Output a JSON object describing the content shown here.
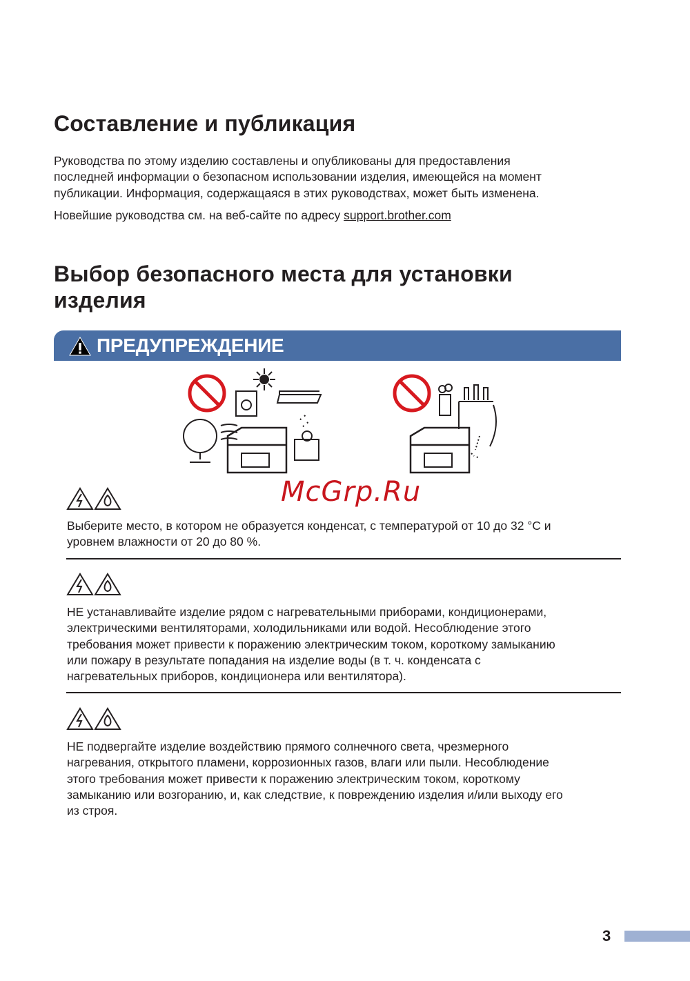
{
  "section1": {
    "title": "Составление и публикация",
    "para1_lines": [
      "Руководства по этому изделию составлены и опубликованы для предоставления",
      "последней информации о безопасном использовании изделия, имеющейся на момент",
      "публикации. Информация, содержащаяся в этих руководствах, может быть изменена."
    ],
    "para2_prefix": "Новейшие руководства см. на веб-сайте по адресу ",
    "para2_link": "support.brother.com"
  },
  "section2": {
    "title_lines": [
      "Выбор безопасного места для установки",
      "изделия"
    ]
  },
  "warning": {
    "label": "ПРЕДУПРЕЖДЕНИЕ",
    "color": "#4a6fa5"
  },
  "watermark": "McGrp.Ru",
  "items": [
    {
      "icons": [
        "electric-shock-warning-icon",
        "fire-warning-icon"
      ],
      "lines": [
        "Выберите место, в котором не образуется конденсат, с температурой от 10 до 32 °C и",
        "уровнем влажности от 20 до 80 %."
      ]
    },
    {
      "icons": [
        "electric-shock-warning-icon",
        "fire-warning-icon"
      ],
      "lines": [
        "НЕ устанавливайте изделие рядом с нагревательными приборами, кондиционерами,",
        "электрическими вентиляторами, холодильниками или водой. Несоблюдение этого",
        "требования может привести к поражению электрическим током, короткому замыканию",
        "или пожару в результате попадания на изделие воды (в т. ч. конденсата с",
        "нагревательных приборов, кондиционера или вентилятора)."
      ]
    },
    {
      "icons": [
        "electric-shock-warning-icon",
        "fire-warning-icon"
      ],
      "lines": [
        "НЕ подвергайте изделие воздействию прямого солнечного света, чрезмерного",
        "нагревания, открытого пламени, коррозионных газов, влаги или пыли. Несоблюдение",
        "этого требования может привести к поражению электрическим током, короткому",
        "замыканию или возгоранию, и, как следствие, к повреждению изделия и/или выходу его",
        "из строя."
      ]
    }
  ],
  "page_number": "3"
}
